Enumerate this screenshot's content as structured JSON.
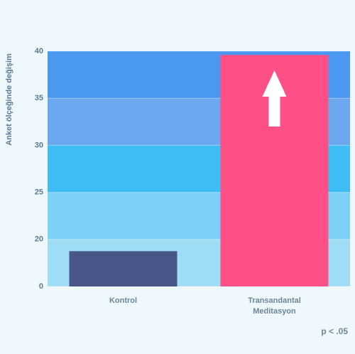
{
  "chart_data": {
    "type": "bar",
    "y_label": "Anket ölçeğinde değişim",
    "categories": [
      "Kontrol",
      "Transandantal Meditasyon"
    ],
    "values": [
      15,
      39.6
    ],
    "colors": [
      "#4a5588",
      "#ff4f87"
    ],
    "ylim": [
      0,
      40
    ],
    "yticks": [
      0,
      20,
      25,
      30,
      35,
      40
    ],
    "band_colors": [
      "#9fddf6",
      "#7dd0f6",
      "#3dbdf4",
      "#6ba8ef",
      "#4b98f1"
    ],
    "annotation": "p < .05"
  }
}
